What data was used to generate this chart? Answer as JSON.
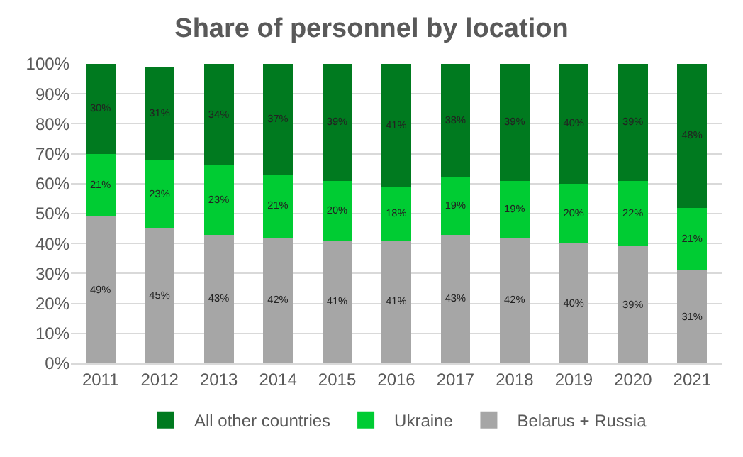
{
  "chart_data": {
    "type": "bar",
    "title": "Share of personnel by location",
    "stacked": true,
    "categories": [
      "2011",
      "2012",
      "2013",
      "2014",
      "2015",
      "2016",
      "2017",
      "2018",
      "2019",
      "2020",
      "2021"
    ],
    "series": [
      {
        "name": "Belarus + Russia",
        "color": "#a6a6a6",
        "values": [
          49,
          45,
          43,
          42,
          41,
          41,
          43,
          42,
          40,
          39,
          31
        ],
        "value_labels": [
          "49%",
          "45%",
          "43%",
          "42%",
          "41%",
          "41%",
          "43%",
          "42%",
          "40%",
          "39%",
          "31%"
        ]
      },
      {
        "name": "Ukraine",
        "color": "#00cc33",
        "values": [
          21,
          23,
          23,
          21,
          20,
          18,
          19,
          19,
          20,
          22,
          21
        ],
        "value_labels": [
          "21%",
          "23%",
          "23%",
          "21%",
          "20%",
          "18%",
          "19%",
          "19%",
          "20%",
          "22%",
          "21%"
        ]
      },
      {
        "name": "All other countries",
        "color": "#007a1f",
        "values": [
          30,
          31,
          34,
          37,
          39,
          41,
          38,
          39,
          40,
          39,
          48
        ],
        "value_labels": [
          "30%",
          "31%",
          "34%",
          "37%",
          "39%",
          "41%",
          "38%",
          "39%",
          "40%",
          "39%",
          "48%"
        ]
      }
    ],
    "ylim": [
      0,
      100
    ],
    "yticks": [
      {
        "value": 0,
        "label": "0%"
      },
      {
        "value": 10,
        "label": "10%"
      },
      {
        "value": 20,
        "label": "20%"
      },
      {
        "value": 30,
        "label": "30%"
      },
      {
        "value": 40,
        "label": "40%"
      },
      {
        "value": 50,
        "label": "50%"
      },
      {
        "value": 60,
        "label": "60%"
      },
      {
        "value": 70,
        "label": "70%"
      },
      {
        "value": 80,
        "label": "80%"
      },
      {
        "value": 90,
        "label": "90%"
      },
      {
        "value": 100,
        "label": "100%"
      }
    ],
    "grid": "y",
    "legend": "bottom"
  }
}
